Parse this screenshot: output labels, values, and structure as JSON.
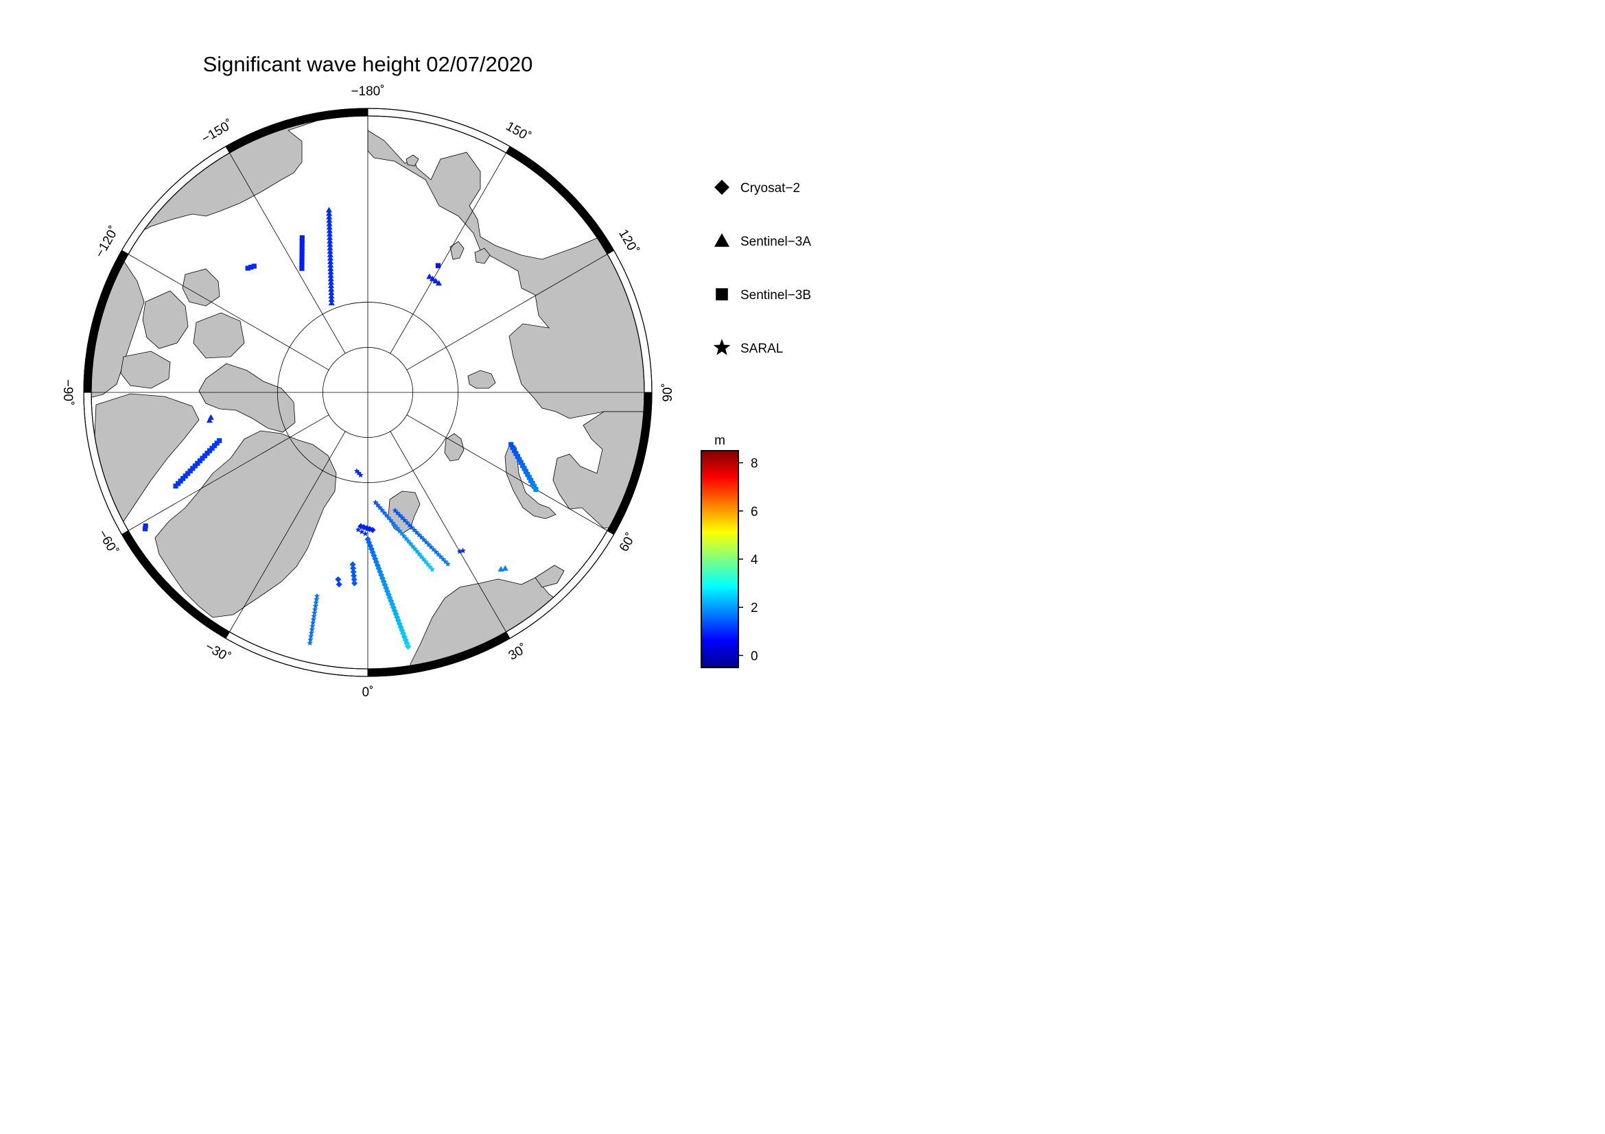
{
  "title": "Significant wave height 02/07/2020",
  "map": {
    "projection": "polar-stereographic-north",
    "min_latitude": 60,
    "parallels": [
      80,
      85
    ],
    "meridian_step": 30,
    "longitude_labels": [
      {
        "lon": -180,
        "text": "−180˚"
      },
      {
        "lon": 150,
        "text": "150˚"
      },
      {
        "lon": 120,
        "text": "120˚"
      },
      {
        "lon": 90,
        "text": "90˚"
      },
      {
        "lon": 60,
        "text": "60˚"
      },
      {
        "lon": 30,
        "text": "30˚"
      },
      {
        "lon": 0,
        "text": "0˚"
      },
      {
        "lon": -30,
        "text": "−30˚"
      },
      {
        "lon": -60,
        "text": "−60˚"
      },
      {
        "lon": -90,
        "text": "−90˚"
      },
      {
        "lon": -120,
        "text": "−120˚"
      },
      {
        "lon": -150,
        "text": "−150˚"
      }
    ],
    "land_color": "#c0c0c0",
    "ocean_color": "#ffffff"
  },
  "legend": [
    {
      "symbol": "diamond",
      "label": "Cryosat−2"
    },
    {
      "symbol": "triangle",
      "label": "Sentinel−3A"
    },
    {
      "symbol": "square",
      "label": "Sentinel−3B"
    },
    {
      "symbol": "star",
      "label": "SARAL"
    }
  ],
  "colorbar": {
    "unit": "m",
    "min": -0.5,
    "max": 8.5,
    "ticks": [
      {
        "value": 0,
        "text": "0"
      },
      {
        "value": 2,
        "text": "2"
      },
      {
        "value": 4,
        "text": "4"
      },
      {
        "value": 6,
        "text": "6"
      },
      {
        "value": 8,
        "text": "8"
      }
    ],
    "colormap": "jet"
  },
  "tracks": [
    {
      "mission": "Sentinel-3A",
      "start": [
        -168,
        69.5
      ],
      "end": [
        -158,
        79.3
      ],
      "hs_start": 1.0,
      "hs_end": 1.0
    },
    {
      "mission": "Sentinel-3B",
      "start": [
        -157,
        71.5
      ],
      "end": [
        -152,
        74.5
      ],
      "hs_start": 0.9,
      "hs_end": 0.9
    },
    {
      "mission": "Sentinel-3B",
      "start": [
        -138,
        71.3
      ],
      "end": [
        -136,
        71.0
      ],
      "hs_start": 1.0,
      "hs_end": 1.0
    },
    {
      "mission": "Sentinel-3A",
      "start": [
        152,
        75.5
      ],
      "end": [
        147,
        75.6
      ],
      "hs_start": 0.9,
      "hs_end": 0.9
    },
    {
      "mission": "Sentinel-3B",
      "start": [
        151,
        74.0
      ],
      "end": [
        151,
        74.0
      ],
      "hs_start": 0.8,
      "hs_end": 0.8
    },
    {
      "mission": "Sentinel-3B",
      "start": [
        -72,
        72.8
      ],
      "end": [
        -64,
        66.6
      ],
      "hs_start": 1.1,
      "hs_end": 1.1
    },
    {
      "mission": "Sentinel-3A",
      "start": [
        -81,
        72.5
      ],
      "end": [
        -80,
        72.3
      ],
      "hs_start": 1.0,
      "hs_end": 1.0
    },
    {
      "mission": "Sentinel-3B",
      "start": [
        -59,
        61.8
      ],
      "end": [
        -58.5,
        61.6
      ],
      "hs_start": 1.0,
      "hs_end": 1.0
    },
    {
      "mission": "SARAL",
      "start": [
        -8,
        81.2
      ],
      "end": [
        -5,
        80.8
      ],
      "hs_start": 1.0,
      "hs_end": 1.0
    },
    {
      "mission": "Sentinel-3B",
      "start": [
        70,
        73.2
      ],
      "end": [
        60,
        68.7
      ],
      "hs_start": 1.3,
      "hs_end": 1.8
    },
    {
      "mission": "SARAL",
      "start": [
        4,
        77.8
      ],
      "end": [
        20,
        69.3
      ],
      "hs_start": 1.3,
      "hs_end": 2.4
    },
    {
      "mission": "SARAL",
      "start": [
        13,
        76.6
      ],
      "end": [
        25,
        69.2
      ],
      "hs_start": 1.3,
      "hs_end": 1.7
    },
    {
      "mission": "SARAL",
      "start": [
        30,
        69.8
      ],
      "end": [
        31,
        69.7
      ],
      "hs_start": 1.0,
      "hs_end": 1.0
    },
    {
      "mission": "Sentinel-3A",
      "start": [
        37,
        65.8
      ],
      "end": [
        38,
        65.6
      ],
      "hs_start": 1.8,
      "hs_end": 1.8
    },
    {
      "mission": "Cryosat-2",
      "start": [
        -3,
        75.2
      ],
      "end": [
        2,
        74.8
      ],
      "hs_start": 0.9,
      "hs_end": 0.9
    },
    {
      "mission": "Cryosat-2",
      "start": [
        0,
        73.8
      ],
      "end": [
        9,
        62.0
      ],
      "hs_start": 1.5,
      "hs_end": 2.5
    },
    {
      "mission": "SARAL",
      "start": [
        -4,
        74.8
      ],
      "end": [
        -1,
        74.4
      ],
      "hs_start": 1.0,
      "hs_end": 1.0
    },
    {
      "mission": "Cryosat-2",
      "start": [
        -5,
        71.0
      ],
      "end": [
        -4,
        69.0
      ],
      "hs_start": 1.4,
      "hs_end": 1.4
    },
    {
      "mission": "Cryosat-2",
      "start": [
        -9,
        69.2
      ],
      "end": [
        -8.5,
        68.7
      ],
      "hs_start": 1.2,
      "hs_end": 1.2
    },
    {
      "mission": "SARAL",
      "start": [
        -14,
        67.0
      ],
      "end": [
        -13,
        62.0
      ],
      "hs_start": 1.6,
      "hs_end": 1.6
    }
  ]
}
